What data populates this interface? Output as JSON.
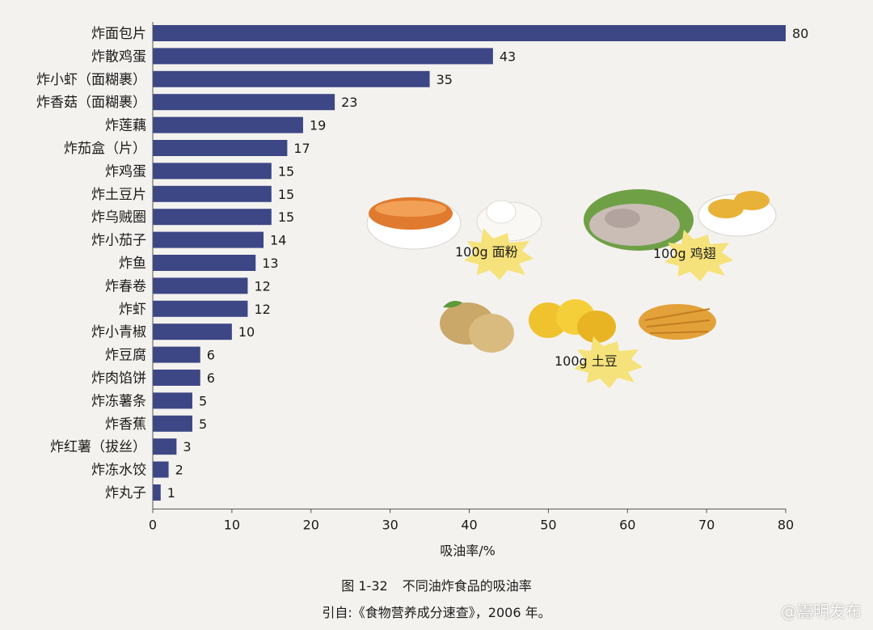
{
  "chart_data": {
    "type": "bar",
    "orientation": "horizontal",
    "categories": [
      "炸面包片",
      "炸散鸡蛋",
      "炸小虾（面糊裹）",
      "炸香菇（面糊裹）",
      "炸莲藕",
      "炸茄盒（片）",
      "炸鸡蛋",
      "炸土豆片",
      "炸乌贼圈",
      "炸小茄子",
      "炸鱼",
      "炸春卷",
      "炸虾",
      "炸小青椒",
      "炸豆腐",
      "炸肉馅饼",
      "炸冻薯条",
      "炸香蕉",
      "炸红薯（拔丝）",
      "炸冻水饺",
      "炸丸子"
    ],
    "values": [
      80,
      43,
      35,
      23,
      19,
      17,
      15,
      15,
      15,
      14,
      13,
      12,
      12,
      10,
      6,
      6,
      5,
      5,
      3,
      2,
      1
    ],
    "xlabel": "吸油率/%",
    "xlim": [
      0,
      80
    ],
    "xticks": [
      0,
      10,
      20,
      30,
      40,
      50,
      60,
      70,
      80
    ],
    "bar_color": "#3d4785",
    "grid": false
  },
  "illustrations": {
    "flour": {
      "label": "100g 面粉",
      "icon": "fried-dough-icon"
    },
    "chicken": {
      "label": "100g 鸡翅",
      "icon": "chicken-wing-icon"
    },
    "potato": {
      "label": "100g 土豆",
      "icon": "potato-icon"
    }
  },
  "caption": {
    "figure_no": "图 1-32",
    "title": "不同油炸食品的吸油率",
    "source": "引自:《食物营养成分速查》，2006 年。"
  },
  "watermark": "@嵩明发布"
}
